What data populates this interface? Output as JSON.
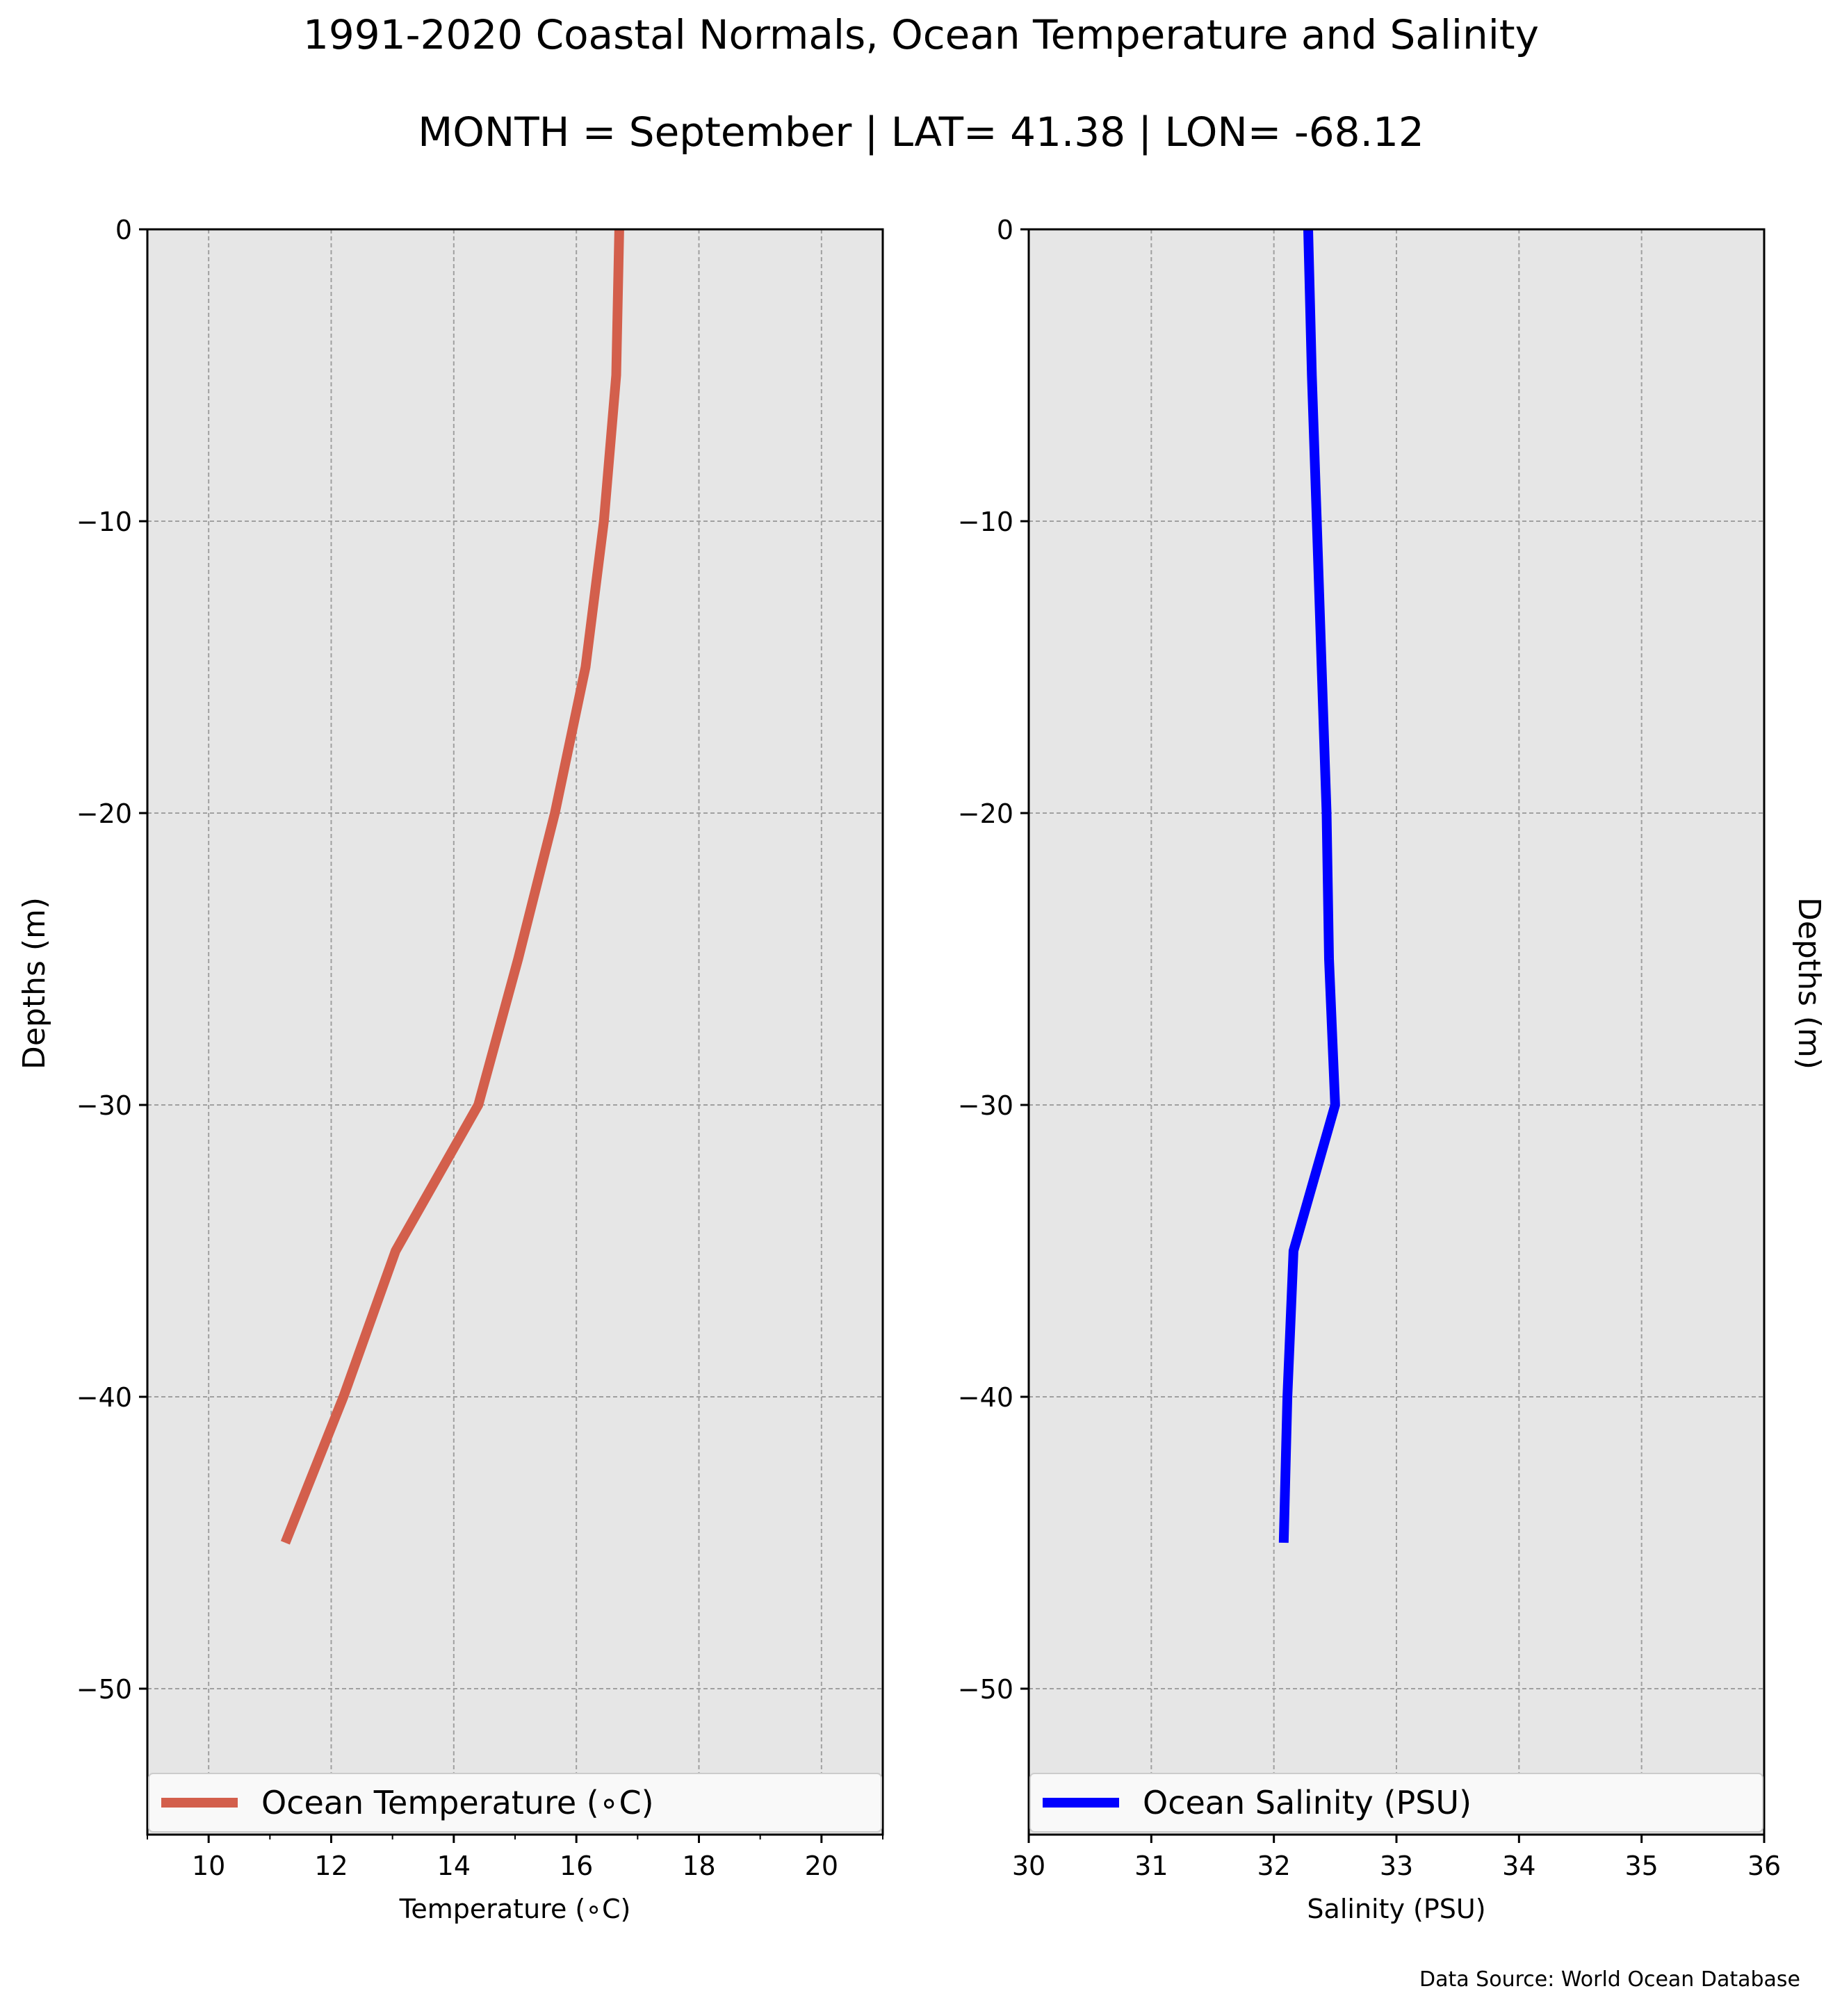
{
  "title": "1991-2020 Coastal Normals, Ocean Temperature and Salinity",
  "subtitle": "MONTH = September | LAT= 41.38 | LON= -68.12",
  "source_note": "Data Source: World Ocean Database",
  "chart_data": [
    {
      "type": "line",
      "title": "",
      "xlabel": "Temperature (∘C)",
      "ylabel": "Depths (m)",
      "ylabel_side": "left",
      "xlim": [
        9,
        21
      ],
      "ylim": [
        -55,
        0
      ],
      "xticks": [
        10,
        12,
        14,
        16,
        18,
        20
      ],
      "xminorticks": [
        9,
        11,
        13,
        15,
        17,
        19,
        21
      ],
      "yticks": [
        0,
        -10,
        -20,
        -30,
        -40,
        -50
      ],
      "grid": true,
      "background": "#e6e6e6",
      "legend_position": "bottom",
      "series": [
        {
          "name": "Ocean Temperature (∘C)",
          "color": "#d35f4c",
          "x": [
            16.7,
            16.65,
            16.45,
            16.15,
            15.65,
            15.05,
            14.4,
            13.05,
            12.2,
            11.25
          ],
          "y": [
            0,
            -5,
            -10,
            -15,
            -20,
            -25,
            -30,
            -35,
            -40,
            -45
          ]
        }
      ]
    },
    {
      "type": "line",
      "title": "",
      "xlabel": "Salinity (PSU)",
      "ylabel": "Depths (m)",
      "ylabel_side": "right",
      "xlim": [
        30,
        36
      ],
      "ylim": [
        -55,
        0
      ],
      "xticks": [
        30,
        31,
        32,
        33,
        34,
        35,
        36
      ],
      "xminorticks": [],
      "yticks": [
        0,
        -10,
        -20,
        -30,
        -40,
        -50
      ],
      "grid": true,
      "background": "#e6e6e6",
      "legend_position": "bottom",
      "series": [
        {
          "name": "Ocean Salinity (PSU)",
          "color": "#0000ff",
          "x": [
            32.28,
            32.31,
            32.35,
            32.39,
            32.43,
            32.45,
            32.5,
            32.16,
            32.11,
            32.08
          ],
          "y": [
            0,
            -5,
            -10,
            -15,
            -20,
            -25,
            -30,
            -35,
            -40,
            -45
          ]
        }
      ]
    }
  ]
}
